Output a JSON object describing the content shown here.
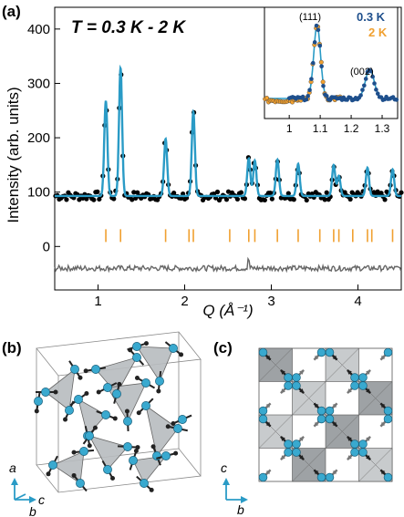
{
  "panel_labels": [
    "(a)",
    "(b)",
    "(c)"
  ],
  "chart_data": [
    {
      "type": "scatter",
      "title": "T = 0.3 K - 2 K",
      "xlabel": "Q (Å⁻¹)",
      "ylabel": "Intensity (arb. units)",
      "xlim": [
        0.5,
        4.5
      ],
      "ylim": [
        -80,
        440
      ],
      "xticks": [
        1,
        2,
        3,
        4
      ],
      "yticks": [
        0,
        100,
        200,
        300,
        400
      ],
      "peaks": [
        {
          "x": 1.09,
          "y": 268
        },
        {
          "x": 1.26,
          "y": 328
        },
        {
          "x": 1.78,
          "y": 198
        },
        {
          "x": 2.1,
          "y": 248
        },
        {
          "x": 2.74,
          "y": 162
        },
        {
          "x": 2.81,
          "y": 158
        },
        {
          "x": 3.07,
          "y": 160
        },
        {
          "x": 3.31,
          "y": 152
        },
        {
          "x": 3.72,
          "y": 150
        },
        {
          "x": 3.78,
          "y": 130
        },
        {
          "x": 4.11,
          "y": 145
        },
        {
          "x": 4.4,
          "y": 142
        }
      ],
      "baseline": 93,
      "bragg_ticks": [
        1.09,
        1.26,
        1.78,
        2.05,
        2.1,
        2.52,
        2.74,
        2.81,
        3.07,
        3.31,
        3.56,
        3.72,
        3.78,
        3.94,
        4.11,
        4.16,
        4.4
      ],
      "bragg_tick_level": 20,
      "difference_offset": -40,
      "colors": {
        "data": "#000000",
        "fit": "#2a9bc6",
        "bragg": "#f0a030",
        "difference": "#666666"
      }
    },
    {
      "type": "scatter",
      "xlim": [
        0.92,
        1.35
      ],
      "xticks": [
        1,
        1.1,
        1.2,
        1.3
      ],
      "tick_labels": [
        "1",
        "1.1",
        "1.2",
        "1.3"
      ],
      "annotations": [
        "(111)",
        "(002)"
      ],
      "series": [
        {
          "name": "0.3 K",
          "color": "#1e4f8c"
        },
        {
          "name": "2 K",
          "color": "#f0a030"
        }
      ]
    }
  ],
  "panel_b": {
    "axes": [
      "a",
      "c",
      "b"
    ]
  },
  "panel_c": {
    "axes": [
      "c",
      "b"
    ]
  }
}
